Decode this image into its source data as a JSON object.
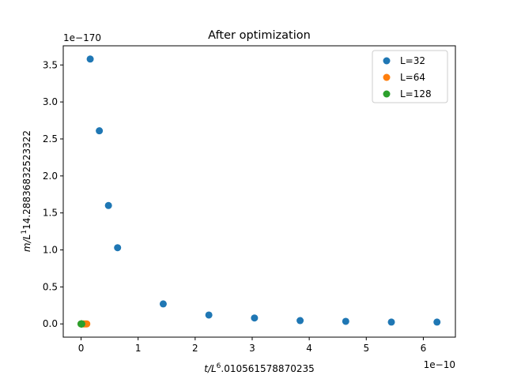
{
  "chart_data": {
    "type": "scatter",
    "title": "After optimization",
    "xlabel": {
      "base": "t/L",
      "exp": "6",
      "rest": ".010561578870235"
    },
    "ylabel": {
      "base": "m/L",
      "exp": "1",
      "rest": "14.28836832523322"
    },
    "x_offset_label": "1e−10",
    "y_offset_label": "1e−170",
    "x_scale": 1e-10,
    "y_scale": 1e-170,
    "xlim": [
      -0.3125,
      6.5625
    ],
    "ylim": [
      -0.179,
      3.759
    ],
    "xticks": [
      0,
      1,
      2,
      3,
      4,
      5,
      6
    ],
    "xtick_labels": [
      "0",
      "1",
      "2",
      "3",
      "4",
      "5",
      "6"
    ],
    "yticks": [
      0.0,
      0.5,
      1.0,
      1.5,
      2.0,
      2.5,
      3.0,
      3.5
    ],
    "ytick_labels": [
      "0.0",
      "0.5",
      "1.0",
      "1.5",
      "2.0",
      "2.5",
      "3.0",
      "3.5"
    ],
    "legend_position": "top-right",
    "series": [
      {
        "name": "L=32",
        "color": "#1f77b4",
        "x": [
          0.0,
          0.16,
          0.32,
          0.48,
          0.64,
          1.44,
          2.24,
          3.04,
          3.84,
          4.64,
          5.44,
          6.24
        ],
        "y": [
          0.0,
          3.58,
          2.61,
          1.6,
          1.03,
          0.27,
          0.12,
          0.08,
          0.045,
          0.035,
          0.025,
          0.025
        ]
      },
      {
        "name": "L=64",
        "color": "#ff7f0e",
        "x": [
          0.0,
          0.01,
          0.02,
          0.04,
          0.06,
          0.08,
          0.1
        ],
        "y": [
          0.0,
          0.0,
          0.0,
          0.0,
          0.0,
          0.0,
          0.0
        ]
      },
      {
        "name": "L=128",
        "color": "#2ca02c",
        "x": [
          0.0,
          0.002,
          0.004,
          0.006,
          0.008,
          0.01,
          0.012
        ],
        "y": [
          0.0,
          0.0,
          0.0,
          0.0,
          0.0,
          0.0,
          0.0
        ]
      }
    ]
  }
}
